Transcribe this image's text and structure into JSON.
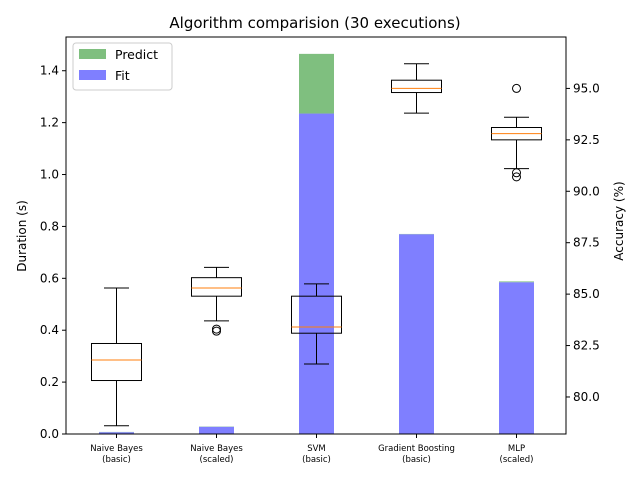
{
  "chart_data": {
    "type": "bar",
    "title": "Algorithm comparision (30 executions)",
    "ylabel": "Duration (s)",
    "y2label": "Accuracy (%)",
    "categories": [
      [
        "Naive Bayes",
        "(basic)"
      ],
      [
        "Naive Bayes",
        "(scaled)"
      ],
      [
        "SVM",
        "(basic)"
      ],
      [
        "Gradient Boosting",
        "(basic)"
      ],
      [
        "MLP",
        "(scaled)"
      ]
    ],
    "ylim": [
      0,
      1.53
    ],
    "yticks": [
      "0.0",
      "0.2",
      "0.4",
      "0.6",
      "0.8",
      "1.0",
      "1.2",
      "1.4"
    ],
    "y2lim": [
      78.2,
      97.5
    ],
    "y2ticks": [
      "80.0",
      "82.5",
      "85.0",
      "87.5",
      "90.0",
      "92.5",
      "95.0"
    ],
    "legend_position": "top-left",
    "series": [
      {
        "name": "Predict",
        "color": "#7fbf7f",
        "values": [
          0.001,
          0.001,
          0.23,
          0.001,
          0.003
        ]
      },
      {
        "name": "Fit",
        "color": "#7f7fff",
        "values": [
          0.007,
          0.028,
          1.235,
          0.77,
          0.585
        ]
      }
    ],
    "boxplots": [
      {
        "whislo": 78.6,
        "q1": 80.8,
        "med": 81.8,
        "q3": 82.6,
        "whishi": 85.3,
        "fliers": []
      },
      {
        "whislo": 83.7,
        "q1": 84.9,
        "med": 85.3,
        "q3": 85.8,
        "whishi": 86.3,
        "fliers": [
          83.3,
          83.2
        ]
      },
      {
        "whislo": 81.6,
        "q1": 83.1,
        "med": 83.4,
        "q3": 84.9,
        "whishi": 85.5,
        "fliers": []
      },
      {
        "whislo": 93.8,
        "q1": 94.8,
        "med": 95.0,
        "q3": 95.4,
        "whishi": 96.2,
        "fliers": []
      },
      {
        "whislo": 91.1,
        "q1": 92.5,
        "med": 92.8,
        "q3": 93.1,
        "whishi": 93.6,
        "fliers": [
          95.0,
          90.9,
          90.7
        ]
      }
    ]
  }
}
